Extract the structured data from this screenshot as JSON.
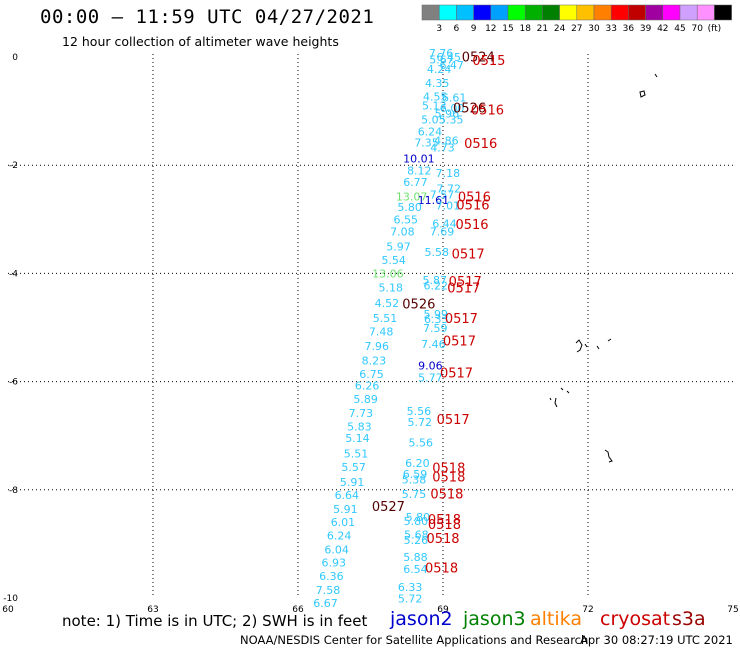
{
  "header": {
    "title": "00:00 – 11:59 UTC 04/27/2021",
    "subtitle": "12 hour collection of altimeter wave heights"
  },
  "colorbar": {
    "colors": [
      "#808080",
      "#00ffff",
      "#00c0ff",
      "#0000ff",
      "#00a0ff",
      "#00ff00",
      "#00b000",
      "#008000",
      "#ffff00",
      "#ffc000",
      "#ff8000",
      "#ff0000",
      "#c00000",
      "#a000a0",
      "#ff00ff",
      "#d0a0ff",
      "#ff90ff",
      "#000000"
    ],
    "labels": [
      "3",
      "6",
      "9",
      "12",
      "15",
      "18",
      "21",
      "24",
      "27",
      "30",
      "33",
      "36",
      "39",
      "42",
      "45",
      "70",
      "(ft)"
    ]
  },
  "axes": {
    "x_ticks": [
      "60",
      "63",
      "66",
      "69",
      "72",
      "75"
    ],
    "y_ticks": [
      "0",
      "-2",
      "-4",
      "-6",
      "-8",
      "-10"
    ],
    "xlim": [
      60,
      75
    ],
    "ylim": [
      -10,
      0.2
    ]
  },
  "legend": {
    "note": "note: 1) Time is in UTC; 2) SWH is in feet",
    "satellites": [
      {
        "name": "jason2",
        "color": "#0000cc"
      },
      {
        "name": "jason3",
        "color": "#008000"
      },
      {
        "name": "altika",
        "color": "#ff8000"
      },
      {
        "name": "cryosat",
        "color": "#cc0000"
      },
      {
        "name": "s3a",
        "color": "#990000"
      }
    ]
  },
  "footer": {
    "credit": "NOAA/NESDIS Center for Satellite Applications and Research",
    "generated": "Apr 30 08:27:19 UTC 2021"
  },
  "wave_heights": [
    {
      "lon": 68.96,
      "lat": 0.0,
      "v": "7.76",
      "c": "#30c8ff"
    },
    {
      "lon": 69.12,
      "lat": -0.07,
      "v": "6.45",
      "c": "#30c8ff"
    },
    {
      "lon": 69.18,
      "lat": -0.22,
      "v": "6.47",
      "c": "#30c8ff"
    },
    {
      "lon": 68.97,
      "lat": -0.12,
      "v": "5.67",
      "c": "#30c8ff"
    },
    {
      "lon": 68.92,
      "lat": -0.3,
      "v": "4.24",
      "c": "#30c8ff"
    },
    {
      "lon": 68.88,
      "lat": -0.55,
      "v": "4.35",
      "c": "#30c8ff"
    },
    {
      "lon": 68.84,
      "lat": -0.8,
      "v": "4.55",
      "c": "#30c8ff"
    },
    {
      "lon": 69.23,
      "lat": -0.82,
      "v": "6.61",
      "c": "#30c8ff"
    },
    {
      "lon": 68.82,
      "lat": -0.97,
      "v": "5.13",
      "c": "#30c8ff"
    },
    {
      "lon": 69.19,
      "lat": -1.02,
      "v": "6.00",
      "c": "#30c8ff"
    },
    {
      "lon": 69.08,
      "lat": -1.12,
      "v": "5.96",
      "c": "#30c8ff"
    },
    {
      "lon": 68.8,
      "lat": -1.23,
      "v": "5.05",
      "c": "#30c8ff"
    },
    {
      "lon": 69.17,
      "lat": -1.23,
      "v": "5.35",
      "c": "#30c8ff"
    },
    {
      "lon": 68.73,
      "lat": -1.45,
      "v": "6.24",
      "c": "#30c8ff"
    },
    {
      "lon": 68.66,
      "lat": -1.65,
      "v": "7.35",
      "c": "#30c8ff"
    },
    {
      "lon": 69.07,
      "lat": -1.62,
      "v": "4.86",
      "c": "#30c8ff"
    },
    {
      "lon": 68.99,
      "lat": -1.75,
      "v": "4.73",
      "c": "#30c8ff"
    },
    {
      "lon": 68.5,
      "lat": -1.95,
      "v": "10.01",
      "c": "#0000cc"
    },
    {
      "lon": 68.51,
      "lat": -2.17,
      "v": "8.12",
      "c": "#30c8ff"
    },
    {
      "lon": 69.1,
      "lat": -2.22,
      "v": "7.18",
      "c": "#30c8ff"
    },
    {
      "lon": 68.43,
      "lat": -2.38,
      "v": "6.77",
      "c": "#30c8ff"
    },
    {
      "lon": 69.12,
      "lat": -2.5,
      "v": "7.72",
      "c": "#30c8ff"
    },
    {
      "lon": 68.35,
      "lat": -2.65,
      "v": "13.07",
      "c": "#70e070"
    },
    {
      "lon": 68.98,
      "lat": -2.62,
      "v": "7.57",
      "c": "#30c8ff"
    },
    {
      "lon": 68.8,
      "lat": -2.72,
      "v": "11.61",
      "c": "#0000cc"
    },
    {
      "lon": 69.1,
      "lat": -2.82,
      "v": "7.01",
      "c": "#30c8ff"
    },
    {
      "lon": 68.31,
      "lat": -2.85,
      "v": "5.80",
      "c": "#30c8ff"
    },
    {
      "lon": 68.23,
      "lat": -3.08,
      "v": "6.55",
      "c": "#30c8ff"
    },
    {
      "lon": 69.03,
      "lat": -3.15,
      "v": "6.44",
      "c": "#30c8ff"
    },
    {
      "lon": 68.16,
      "lat": -3.3,
      "v": "7.08",
      "c": "#30c8ff"
    },
    {
      "lon": 68.98,
      "lat": -3.3,
      "v": "7.69",
      "c": "#30c8ff"
    },
    {
      "lon": 68.08,
      "lat": -3.58,
      "v": "5.97",
      "c": "#30c8ff"
    },
    {
      "lon": 68.87,
      "lat": -3.68,
      "v": "5.58",
      "c": "#30c8ff"
    },
    {
      "lon": 67.98,
      "lat": -3.83,
      "v": "5.54",
      "c": "#30c8ff"
    },
    {
      "lon": 67.86,
      "lat": -4.08,
      "v": "13.06",
      "c": "#70e070"
    },
    {
      "lon": 68.83,
      "lat": -4.2,
      "v": "5.87",
      "c": "#30c8ff"
    },
    {
      "lon": 68.85,
      "lat": -4.3,
      "v": "6.22",
      "c": "#30c8ff"
    },
    {
      "lon": 67.92,
      "lat": -4.33,
      "v": "5.18",
      "c": "#30c8ff"
    },
    {
      "lon": 67.84,
      "lat": -4.62,
      "v": "4.52",
      "c": "#30c8ff"
    },
    {
      "lon": 68.85,
      "lat": -4.82,
      "v": "5.99",
      "c": "#30c8ff"
    },
    {
      "lon": 68.86,
      "lat": -4.92,
      "v": "6.33",
      "c": "#30c8ff"
    },
    {
      "lon": 67.8,
      "lat": -4.9,
      "v": "5.51",
      "c": "#30c8ff"
    },
    {
      "lon": 68.84,
      "lat": -5.08,
      "v": "7.59",
      "c": "#30c8ff"
    },
    {
      "lon": 67.72,
      "lat": -5.15,
      "v": "7.48",
      "c": "#30c8ff"
    },
    {
      "lon": 68.8,
      "lat": -5.38,
      "v": "7.46",
      "c": "#30c8ff"
    },
    {
      "lon": 67.63,
      "lat": -5.42,
      "v": "7.96",
      "c": "#30c8ff"
    },
    {
      "lon": 67.57,
      "lat": -5.68,
      "v": "8.23",
      "c": "#30c8ff"
    },
    {
      "lon": 68.74,
      "lat": -5.78,
      "v": "9.06",
      "c": "#0000cc"
    },
    {
      "lon": 67.52,
      "lat": -5.93,
      "v": "6.75",
      "c": "#30c8ff"
    },
    {
      "lon": 68.74,
      "lat": -6.0,
      "v": "5.77",
      "c": "#30c8ff"
    },
    {
      "lon": 67.43,
      "lat": -6.15,
      "v": "6.26",
      "c": "#30c8ff"
    },
    {
      "lon": 67.4,
      "lat": -6.4,
      "v": "5.89",
      "c": "#30c8ff"
    },
    {
      "lon": 67.3,
      "lat": -6.65,
      "v": "7.73",
      "c": "#30c8ff"
    },
    {
      "lon": 68.5,
      "lat": -6.62,
      "v": "5.56",
      "c": "#30c8ff"
    },
    {
      "lon": 68.52,
      "lat": -6.82,
      "v": "5.72",
      "c": "#30c8ff"
    },
    {
      "lon": 67.27,
      "lat": -6.9,
      "v": "5.83",
      "c": "#30c8ff"
    },
    {
      "lon": 67.23,
      "lat": -7.12,
      "v": "5.14",
      "c": "#30c8ff"
    },
    {
      "lon": 68.54,
      "lat": -7.2,
      "v": "5.56",
      "c": "#30c8ff"
    },
    {
      "lon": 67.2,
      "lat": -7.4,
      "v": "5.51",
      "c": "#30c8ff"
    },
    {
      "lon": 67.15,
      "lat": -7.65,
      "v": "5.57",
      "c": "#30c8ff"
    },
    {
      "lon": 68.47,
      "lat": -7.58,
      "v": "6.20",
      "c": "#30c8ff"
    },
    {
      "lon": 68.42,
      "lat": -7.78,
      "v": "6.59",
      "c": "#30c8ff"
    },
    {
      "lon": 68.4,
      "lat": -7.88,
      "v": "5.38",
      "c": "#30c8ff"
    },
    {
      "lon": 67.12,
      "lat": -7.93,
      "v": "5.91",
      "c": "#30c8ff"
    },
    {
      "lon": 68.4,
      "lat": -8.15,
      "v": "5.75",
      "c": "#30c8ff"
    },
    {
      "lon": 67.01,
      "lat": -8.17,
      "v": "6.64",
      "c": "#30c8ff"
    },
    {
      "lon": 66.98,
      "lat": -8.43,
      "v": "5.91",
      "c": "#30c8ff"
    },
    {
      "lon": 68.48,
      "lat": -8.58,
      "v": "5.80",
      "c": "#30c8ff"
    },
    {
      "lon": 68.44,
      "lat": -8.65,
      "v": "5.80",
      "c": "#30c8ff"
    },
    {
      "lon": 66.93,
      "lat": -8.67,
      "v": "6.01",
      "c": "#30c8ff"
    },
    {
      "lon": 68.45,
      "lat": -8.9,
      "v": "5.68",
      "c": "#30c8ff"
    },
    {
      "lon": 66.85,
      "lat": -8.92,
      "v": "6.24",
      "c": "#30c8ff"
    },
    {
      "lon": 68.44,
      "lat": -9.0,
      "v": "5.26",
      "c": "#30c8ff"
    },
    {
      "lon": 66.8,
      "lat": -9.18,
      "v": "6.04",
      "c": "#30c8ff"
    },
    {
      "lon": 68.43,
      "lat": -9.32,
      "v": "5.88",
      "c": "#30c8ff"
    },
    {
      "lon": 66.74,
      "lat": -9.42,
      "v": "6.93",
      "c": "#30c8ff"
    },
    {
      "lon": 68.43,
      "lat": -9.54,
      "v": "6.54",
      "c": "#30c8ff"
    },
    {
      "lon": 66.69,
      "lat": -9.67,
      "v": "6.36",
      "c": "#30c8ff"
    },
    {
      "lon": 68.32,
      "lat": -9.87,
      "v": "6.33",
      "c": "#30c8ff"
    },
    {
      "lon": 66.62,
      "lat": -9.93,
      "v": "7.58",
      "c": "#30c8ff"
    },
    {
      "lon": 68.32,
      "lat": -10.08,
      "v": "5.72",
      "c": "#30c8ff"
    },
    {
      "lon": 66.57,
      "lat": -10.17,
      "v": "6.67",
      "c": "#30c8ff"
    }
  ],
  "date_stamps": [
    {
      "lon": 69.73,
      "lat": -0.08,
      "v": "0524",
      "c": "#550000"
    },
    {
      "lon": 69.95,
      "lat": -0.15,
      "v": "0515",
      "c": "#cc0000"
    },
    {
      "lon": 69.55,
      "lat": -1.03,
      "v": "0526",
      "c": "#550000"
    },
    {
      "lon": 69.92,
      "lat": -1.06,
      "v": "0516",
      "c": "#cc0000"
    },
    {
      "lon": 69.78,
      "lat": -1.68,
      "v": "0516",
      "c": "#cc0000"
    },
    {
      "lon": 69.65,
      "lat": -2.67,
      "v": "0516",
      "c": "#cc0000"
    },
    {
      "lon": 69.62,
      "lat": -2.82,
      "v": "0516",
      "c": "#cc0000"
    },
    {
      "lon": 69.6,
      "lat": -3.18,
      "v": "0516",
      "c": "#cc0000"
    },
    {
      "lon": 69.52,
      "lat": -3.72,
      "v": "0517",
      "c": "#cc0000"
    },
    {
      "lon": 69.46,
      "lat": -4.23,
      "v": "0517",
      "c": "#cc0000"
    },
    {
      "lon": 69.43,
      "lat": -4.35,
      "v": "0517",
      "c": "#cc0000"
    },
    {
      "lon": 68.5,
      "lat": -4.65,
      "v": "0526",
      "c": "#550000"
    },
    {
      "lon": 69.38,
      "lat": -4.92,
      "v": "0517",
      "c": "#cc0000"
    },
    {
      "lon": 69.34,
      "lat": -5.33,
      "v": "0517",
      "c": "#cc0000"
    },
    {
      "lon": 69.28,
      "lat": -5.92,
      "v": "0517",
      "c": "#cc0000"
    },
    {
      "lon": 69.21,
      "lat": -6.78,
      "v": "0517",
      "c": "#cc0000"
    },
    {
      "lon": 69.12,
      "lat": -7.68,
      "v": "0518",
      "c": "#cc0000"
    },
    {
      "lon": 69.12,
      "lat": -7.85,
      "v": "0518",
      "c": "#cc0000"
    },
    {
      "lon": 69.08,
      "lat": -8.16,
      "v": "0518",
      "c": "#cc0000"
    },
    {
      "lon": 67.87,
      "lat": -8.39,
      "v": "0527",
      "c": "#550000"
    },
    {
      "lon": 69.03,
      "lat": -8.63,
      "v": "0518",
      "c": "#cc0000"
    },
    {
      "lon": 69.03,
      "lat": -8.72,
      "v": "0518",
      "c": "#cc0000"
    },
    {
      "lon": 69.0,
      "lat": -8.98,
      "v": "0518",
      "c": "#cc0000"
    },
    {
      "lon": 68.97,
      "lat": -9.53,
      "v": "0518",
      "c": "#cc0000"
    }
  ]
}
